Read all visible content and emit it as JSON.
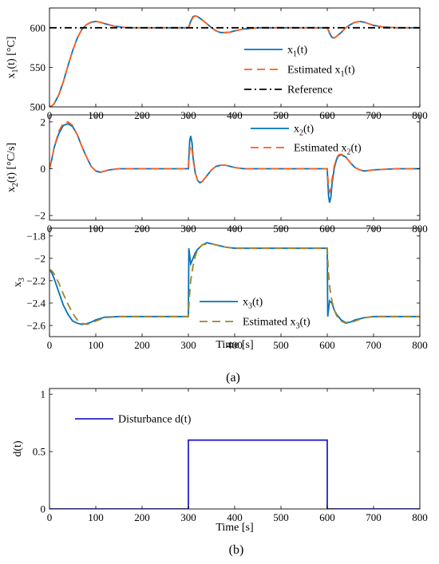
{
  "figure": {
    "caption_a": "(a)",
    "caption_b": "(b)"
  },
  "colors": {
    "blue": "#0072BD",
    "orange": "#FF5F1F",
    "olive": "#A08528",
    "navy": "#2323C8",
    "black": "#000000"
  },
  "chart_data": [
    {
      "type": "line",
      "xlim": [
        0,
        800
      ],
      "ylim": [
        500,
        625
      ],
      "xticks": [
        "0",
        "100",
        "200",
        "300",
        "400",
        "500",
        "600",
        "700",
        "800"
      ],
      "yticks": [
        "500",
        "550",
        "600"
      ],
      "ylabel": {
        "main": "x",
        "sub": "1",
        "rest": "(t)  [°C]"
      },
      "xlabel": "",
      "grid": false,
      "legend_position": "right",
      "series": [
        {
          "name": {
            "main": "x",
            "sub": "1",
            "rest": "(t)"
          },
          "color": "blue",
          "dash": "solid",
          "x": [
            0,
            5,
            10,
            20,
            30,
            40,
            50,
            60,
            70,
            80,
            90,
            100,
            110,
            120,
            140,
            160,
            180,
            200,
            300,
            305,
            310,
            315,
            320,
            330,
            340,
            350,
            360,
            370,
            380,
            390,
            400,
            420,
            450,
            500,
            600,
            605,
            610,
            615,
            620,
            630,
            640,
            650,
            660,
            670,
            680,
            690,
            700,
            720,
            750,
            800
          ],
          "y": [
            500,
            501,
            504,
            515,
            532,
            552,
            571,
            587,
            598,
            604,
            607,
            608,
            607,
            605,
            602,
            600.5,
            600,
            600,
            600,
            608,
            614,
            615,
            614,
            610,
            605,
            600,
            596,
            594,
            594,
            594.5,
            596,
            598.5,
            600,
            600,
            600,
            593,
            588,
            587,
            589,
            594,
            600,
            604,
            607,
            608,
            607,
            605,
            603,
            601,
            600,
            600
          ]
        },
        {
          "name": {
            "main": "Estimated x",
            "sub": "1",
            "rest": "(t)"
          },
          "color": "orange",
          "dash": "dashed",
          "x": [
            0,
            5,
            10,
            20,
            30,
            40,
            50,
            60,
            70,
            80,
            90,
            100,
            110,
            120,
            140,
            160,
            180,
            200,
            300,
            305,
            310,
            315,
            320,
            330,
            340,
            350,
            360,
            370,
            380,
            390,
            400,
            420,
            450,
            500,
            600,
            605,
            610,
            615,
            620,
            630,
            640,
            650,
            660,
            670,
            680,
            690,
            700,
            720,
            750,
            800
          ],
          "y": [
            500,
            501,
            504,
            515,
            532,
            552,
            571,
            587,
            598,
            604,
            607,
            608,
            607,
            605,
            602,
            600.5,
            600,
            600,
            600,
            607,
            613,
            615,
            614,
            610,
            605,
            600,
            596,
            594,
            594,
            594.5,
            596,
            598.5,
            600,
            600,
            600,
            594,
            589,
            587,
            589,
            594,
            600,
            604,
            607,
            608,
            607,
            605,
            603,
            601,
            600,
            600
          ]
        },
        {
          "name": {
            "main": "Reference",
            "sub": "",
            "rest": ""
          },
          "color": "black",
          "dash": "dashdot",
          "x": [
            0,
            800
          ],
          "y": [
            600,
            600
          ]
        }
      ]
    },
    {
      "type": "line",
      "xlim": [
        0,
        800
      ],
      "ylim": [
        -2.2,
        2.3
      ],
      "xticks": [
        "0",
        "100",
        "200",
        "300",
        "400",
        "500",
        "600",
        "700",
        "800"
      ],
      "yticks": [
        "-2",
        "0",
        "2"
      ],
      "ylabel": {
        "main": "x",
        "sub": "2",
        "rest": "(t)  [°C/s]"
      },
      "xlabel": "",
      "grid": false,
      "legend_position": "top-right",
      "series": [
        {
          "name": {
            "main": "x",
            "sub": "2",
            "rest": "(t)"
          },
          "color": "blue",
          "dash": "solid",
          "x": [
            0,
            5,
            10,
            20,
            30,
            40,
            50,
            60,
            70,
            80,
            90,
            100,
            110,
            120,
            130,
            150,
            180,
            200,
            300,
            301,
            303,
            305,
            308,
            310,
            315,
            320,
            325,
            330,
            340,
            350,
            360,
            370,
            380,
            390,
            400,
            420,
            450,
            500,
            600,
            601,
            603,
            605,
            608,
            610,
            615,
            620,
            625,
            630,
            640,
            650,
            660,
            670,
            680,
            700,
            750,
            800
          ],
          "y": [
            0,
            0.4,
            0.9,
            1.5,
            1.85,
            1.92,
            1.8,
            1.45,
            0.95,
            0.5,
            0.1,
            -0.1,
            -0.15,
            -0.1,
            -0.05,
            0,
            0,
            0,
            0,
            0.5,
            1.2,
            1.4,
            1.1,
            0.5,
            -0.2,
            -0.5,
            -0.6,
            -0.55,
            -0.3,
            -0.05,
            0.1,
            0.15,
            0.15,
            0.1,
            0.05,
            0,
            0,
            0,
            0,
            -0.5,
            -1.2,
            -1.45,
            -1.2,
            -0.7,
            0,
            0.4,
            0.55,
            0.6,
            0.5,
            0.25,
            0.05,
            -0.05,
            -0.1,
            -0.05,
            0,
            0
          ]
        },
        {
          "name": {
            "main": "Estimated x",
            "sub": "2",
            "rest": "(t)"
          },
          "color": "orange",
          "dash": "dashed",
          "x": [
            0,
            5,
            10,
            20,
            30,
            40,
            50,
            60,
            70,
            80,
            90,
            100,
            110,
            120,
            130,
            150,
            180,
            200,
            300,
            301,
            303,
            305,
            308,
            310,
            315,
            320,
            325,
            330,
            340,
            350,
            360,
            370,
            380,
            390,
            400,
            420,
            450,
            500,
            600,
            601,
            603,
            605,
            608,
            610,
            615,
            620,
            625,
            630,
            640,
            650,
            660,
            670,
            680,
            700,
            750,
            800
          ],
          "y": [
            0,
            0.4,
            0.9,
            1.6,
            1.95,
            2.0,
            1.85,
            1.45,
            0.95,
            0.5,
            0.1,
            -0.1,
            -0.15,
            -0.1,
            -0.05,
            0,
            0,
            0,
            0,
            0.3,
            0.8,
            1.0,
            0.8,
            0.4,
            -0.2,
            -0.5,
            -0.6,
            -0.55,
            -0.3,
            -0.05,
            0.1,
            0.15,
            0.15,
            0.1,
            0.05,
            0,
            0,
            0,
            0,
            -0.3,
            -0.8,
            -1.0,
            -0.85,
            -0.5,
            0.1,
            0.45,
            0.6,
            0.62,
            0.5,
            0.25,
            0.05,
            -0.05,
            -0.1,
            -0.05,
            0,
            0
          ]
        }
      ]
    },
    {
      "type": "line",
      "xlim": [
        0,
        800
      ],
      "ylim": [
        -2.7,
        -1.73
      ],
      "xticks": [
        "0",
        "100",
        "200",
        "300",
        "400",
        "500",
        "600",
        "700",
        "800"
      ],
      "yticks": [
        "-1.8",
        "-2",
        "-2.2",
        "-2.4",
        "-2.6"
      ],
      "ylabel": {
        "main": "x",
        "sub": "3",
        "rest": ""
      },
      "xlabel": "Time [s]",
      "grid": false,
      "legend_position": "bottom-center",
      "series": [
        {
          "name": {
            "main": "x",
            "sub": "3",
            "rest": "(t)"
          },
          "color": "blue",
          "dash": "solid",
          "x": [
            0,
            5,
            10,
            20,
            30,
            40,
            50,
            60,
            70,
            80,
            90,
            100,
            120,
            150,
            200,
            300,
            301,
            302,
            305,
            310,
            315,
            320,
            330,
            340,
            350,
            360,
            380,
            400,
            450,
            500,
            600,
            601,
            602,
            605,
            610,
            615,
            620,
            630,
            640,
            650,
            660,
            680,
            700,
            750,
            800
          ],
          "y": [
            -2.1,
            -2.13,
            -2.18,
            -2.3,
            -2.42,
            -2.5,
            -2.56,
            -2.58,
            -2.59,
            -2.585,
            -2.57,
            -2.55,
            -2.525,
            -2.52,
            -2.52,
            -2.52,
            -1.91,
            -1.95,
            -2.05,
            -2.0,
            -1.95,
            -1.92,
            -1.88,
            -1.86,
            -1.87,
            -1.88,
            -1.9,
            -1.91,
            -1.91,
            -1.91,
            -1.91,
            -2.52,
            -2.48,
            -2.38,
            -2.4,
            -2.46,
            -2.5,
            -2.55,
            -2.575,
            -2.57,
            -2.55,
            -2.53,
            -2.52,
            -2.52,
            -2.52
          ]
        },
        {
          "name": {
            "main": "Estimated x",
            "sub": "3",
            "rest": "(t)"
          },
          "color": "olive",
          "dash": "dashed",
          "x": [
            0,
            5,
            10,
            20,
            30,
            40,
            50,
            60,
            70,
            80,
            90,
            100,
            120,
            150,
            200,
            300,
            302,
            305,
            310,
            315,
            320,
            330,
            340,
            350,
            360,
            380,
            400,
            450,
            500,
            600,
            602,
            605,
            610,
            615,
            620,
            630,
            640,
            650,
            660,
            680,
            700,
            750,
            800
          ],
          "y": [
            -2.1,
            -2.11,
            -2.14,
            -2.22,
            -2.32,
            -2.41,
            -2.49,
            -2.55,
            -2.58,
            -2.59,
            -2.58,
            -2.56,
            -2.53,
            -2.52,
            -2.52,
            -2.52,
            -2.35,
            -2.2,
            -2.07,
            -1.98,
            -1.92,
            -1.88,
            -1.87,
            -1.87,
            -1.88,
            -1.9,
            -1.91,
            -1.91,
            -1.91,
            -1.91,
            -2.1,
            -2.25,
            -2.38,
            -2.46,
            -2.51,
            -2.56,
            -2.58,
            -2.575,
            -2.56,
            -2.53,
            -2.52,
            -2.52,
            -2.52
          ]
        }
      ]
    },
    {
      "type": "line",
      "xlim": [
        0,
        800
      ],
      "ylim": [
        0,
        1.05
      ],
      "xticks": [
        "0",
        "100",
        "200",
        "300",
        "400",
        "500",
        "600",
        "700",
        "800"
      ],
      "yticks": [
        "0",
        "0.5",
        "1"
      ],
      "ylabel": {
        "main": "d(t)",
        "sub": "",
        "rest": ""
      },
      "xlabel": "Time [s]",
      "grid": false,
      "legend_position": "top-left",
      "series": [
        {
          "name": {
            "main": "Disturbance d(t)",
            "sub": "",
            "rest": ""
          },
          "color": "navy",
          "dash": "solid",
          "x": [
            0,
            300,
            300,
            600,
            600,
            800
          ],
          "y": [
            0,
            0,
            0.6,
            0.6,
            0,
            0
          ]
        }
      ]
    }
  ]
}
